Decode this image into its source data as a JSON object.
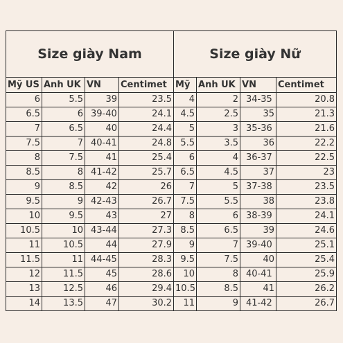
{
  "men": {
    "title": "Size giày Nam",
    "headers": [
      "Mỹ US",
      "Anh UK",
      "VN",
      "Centimet"
    ],
    "rows": [
      [
        "6",
        "5.5",
        "39",
        "23.5"
      ],
      [
        "6.5",
        "6",
        "39-40",
        "24.1"
      ],
      [
        "7",
        "6.5",
        "40",
        "24.4"
      ],
      [
        "7.5",
        "7",
        "40-41",
        "24.8"
      ],
      [
        "8",
        "7.5",
        "41",
        "25.4"
      ],
      [
        "8.5",
        "8",
        "41-42",
        "25.7"
      ],
      [
        "9",
        "8.5",
        "42",
        "26"
      ],
      [
        "9.5",
        "9",
        "42-43",
        "26.7"
      ],
      [
        "10",
        "9.5",
        "43",
        "27"
      ],
      [
        "10.5",
        "10",
        "43-44",
        "27.3"
      ],
      [
        "11",
        "10.5",
        "44",
        "27.9"
      ],
      [
        "11.5",
        "11",
        "44-45",
        "28.3"
      ],
      [
        "12",
        "11.5",
        "45",
        "28.6"
      ],
      [
        "13",
        "12.5",
        "46",
        "29.4"
      ],
      [
        "14",
        "13.5",
        "47",
        "30.2"
      ]
    ]
  },
  "women": {
    "title": "Size giày Nữ",
    "headers": [
      "Mỹ",
      "Anh UK",
      "VN",
      "Centimet"
    ],
    "rows": [
      [
        "4",
        "2",
        "34-35",
        "20.8"
      ],
      [
        "4.5",
        "2.5",
        "35",
        "21.3"
      ],
      [
        "5",
        "3",
        "35-36",
        "21.6"
      ],
      [
        "5.5",
        "3.5",
        "36",
        "22.2"
      ],
      [
        "6",
        "4",
        "36-37",
        "22.5"
      ],
      [
        "6.5",
        "4.5",
        "37",
        "23"
      ],
      [
        "7",
        "5",
        "37-38",
        "23.5"
      ],
      [
        "7.5",
        "5.5",
        "38",
        "23.8"
      ],
      [
        "8",
        "6",
        "38-39",
        "24.1"
      ],
      [
        "8.5",
        "6.5",
        "39",
        "24.6"
      ],
      [
        "9",
        "7",
        "39-40",
        "25.1"
      ],
      [
        "9.5",
        "7.5",
        "40",
        "25.4"
      ],
      [
        "10",
        "8",
        "40-41",
        "25.9"
      ],
      [
        "10.5",
        "8.5",
        "41",
        "26.2"
      ],
      [
        "11",
        "9",
        "41-42",
        "26.7"
      ]
    ]
  }
}
